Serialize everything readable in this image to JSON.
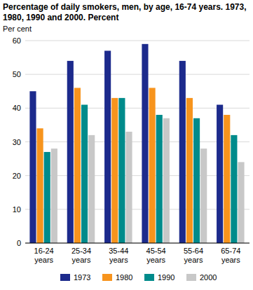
{
  "chart_data": {
    "type": "bar",
    "title": "Percentage of daily smokers, men, by age, 16-74 years. 1973, 1980, 1990 and 2000. Percent",
    "y_label": "Per cent",
    "categories": [
      "16-24 years",
      "25-34 years",
      "35-44 years",
      "45-54 years",
      "55-64 years",
      "65-74 years"
    ],
    "series": [
      {
        "name": "1973",
        "color": "#1c2a8c",
        "values": [
          45,
          54,
          57,
          59,
          54,
          41
        ]
      },
      {
        "name": "1980",
        "color": "#f7941d",
        "values": [
          34,
          46,
          43,
          46,
          43,
          38
        ]
      },
      {
        "name": "1990",
        "color": "#008b8b",
        "values": [
          27,
          41,
          43,
          38,
          37,
          32
        ]
      },
      {
        "name": "2000",
        "color": "#c8c8c8",
        "values": [
          28,
          32,
          33,
          37,
          28,
          24
        ]
      }
    ],
    "ylim": [
      0,
      60
    ],
    "yticks": [
      0,
      10,
      20,
      30,
      40,
      50,
      60
    ],
    "grid": true,
    "legend": "bottom"
  }
}
